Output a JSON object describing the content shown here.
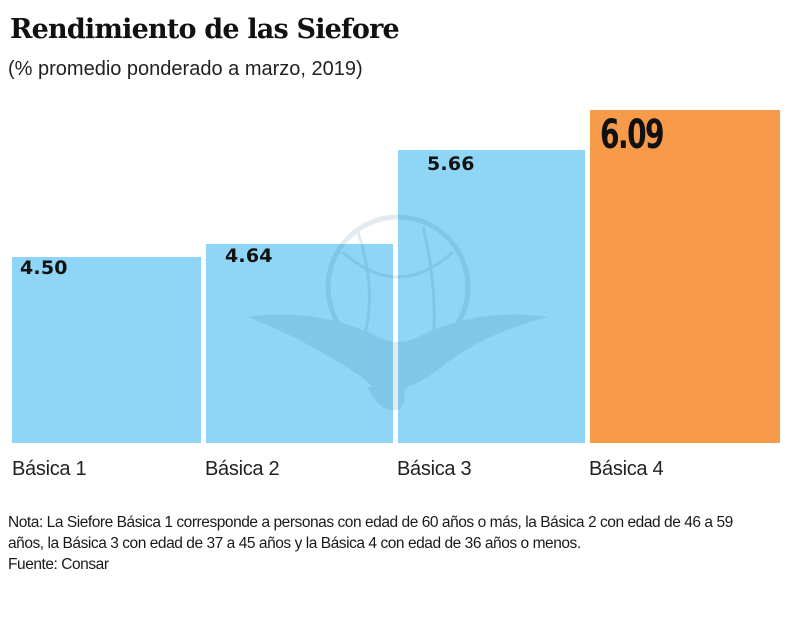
{
  "header": {
    "title": "Rendimiento de las Siefore",
    "subtitle": "(% promedio ponderado a marzo, 2019)"
  },
  "colors": {
    "bar_default": "#8fd5f5",
    "bar_highlight": "#f79a4a",
    "text": "#111111",
    "watermark": "#2a6f8f"
  },
  "bars": [
    {
      "label": "Básica 1",
      "value_label": "4.50",
      "highlight": false
    },
    {
      "label": "Básica 2",
      "value_label": "4.64",
      "highlight": false
    },
    {
      "label": "Básica 3",
      "value_label": "5.66",
      "highlight": false
    },
    {
      "label": "Básica 4",
      "value_label": "6.09",
      "highlight": true
    }
  ],
  "footer": {
    "note": "Nota: La Siefore Básica 1 corresponde a personas con edad de 60 años o más, la Básica 2 con edad de 46 a 59 años, la Básica 3 con edad de 37 a 45 años y la Básica 4 con edad de 36 años o menos.",
    "source": "Fuente: Consar"
  },
  "chart_data": {
    "type": "bar",
    "title": "Rendimiento de las Siefore",
    "subtitle": "(% promedio ponderado a marzo, 2019)",
    "categories": [
      "Básica 1",
      "Básica 2",
      "Básica 3",
      "Básica 4"
    ],
    "values": [
      4.5,
      4.64,
      5.66,
      6.09
    ],
    "xlabel": "",
    "ylabel": "",
    "unit": "%",
    "highlighted_category": "Básica 4",
    "grid": false,
    "axis_visible": false,
    "legend": null,
    "annotations": [
      "Fuente: Consar"
    ]
  }
}
